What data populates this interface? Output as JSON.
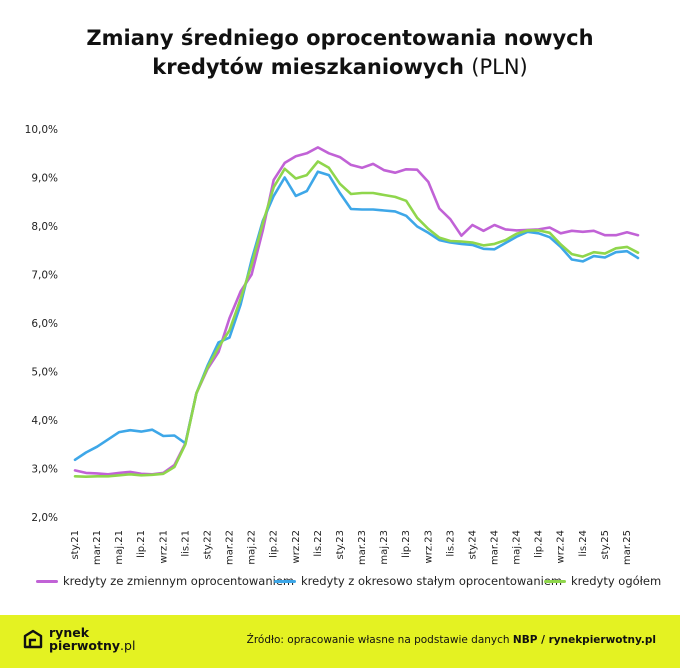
{
  "title": {
    "line1": "Zmiany średniego oprocentowania nowych",
    "line2": "kredytów mieszkaniowych",
    "unit": "(PLN)"
  },
  "colors": {
    "variable": "#c162d6",
    "fixed": "#3ea7e8",
    "total": "#8fd64c",
    "footer_bg": "#e4f222"
  },
  "legend": {
    "variable": "kredyty ze zmiennym oprocentowaniem",
    "fixed": "kredyty z okresowo stałym oprocentowaniem",
    "total": "kredyty ogółem"
  },
  "footer": {
    "logo_line1": "rynek",
    "logo_line2": "pierwotny",
    "logo_suffix": ".pl",
    "source_prefix": "Źródło: opracowanie własne na podstawie danych",
    "source_nbp": "NBP",
    "source_sep": " / ",
    "source_site": "rynekpierwotny.pl"
  },
  "chart_data": {
    "type": "line",
    "ylim": [
      2.0,
      10.0
    ],
    "y_ticks": [
      "2,0%",
      "3,0%",
      "4,0%",
      "5,0%",
      "6,0%",
      "7,0%",
      "8,0%",
      "9,0%",
      "10,0%"
    ],
    "x_tick_labels": [
      "sty.21",
      "mar.21",
      "maj.21",
      "lip.21",
      "wrz.21",
      "lis.21",
      "sty.22",
      "mar.22",
      "maj.22",
      "lip.22",
      "wrz.22",
      "lis.22",
      "sty.23",
      "mar.23",
      "maj.23",
      "lip.23",
      "wrz.23",
      "lis.23",
      "sty.24",
      "mar.24",
      "maj.24",
      "lip.24",
      "wrz.24",
      "lis.24",
      "sty.25",
      "mar.25"
    ],
    "x": [
      "2021-01",
      "2021-02",
      "2021-03",
      "2021-04",
      "2021-05",
      "2021-06",
      "2021-07",
      "2021-08",
      "2021-09",
      "2021-10",
      "2021-11",
      "2021-12",
      "2022-01",
      "2022-02",
      "2022-03",
      "2022-04",
      "2022-05",
      "2022-06",
      "2022-07",
      "2022-08",
      "2022-09",
      "2022-10",
      "2022-11",
      "2022-12",
      "2023-01",
      "2023-02",
      "2023-03",
      "2023-04",
      "2023-05",
      "2023-06",
      "2023-07",
      "2023-08",
      "2023-09",
      "2023-10",
      "2023-11",
      "2023-12",
      "2024-01",
      "2024-02",
      "2024-03",
      "2024-04",
      "2024-05",
      "2024-06",
      "2024-07",
      "2024-08",
      "2024-09",
      "2024-10",
      "2024-11",
      "2024-12",
      "2025-01",
      "2025-02",
      "2025-03",
      "2025-04"
    ],
    "series": [
      {
        "name": "kredyty ze zmiennym oprocentowaniem",
        "key": "variable",
        "values": [
          2.96,
          2.91,
          2.9,
          2.88,
          2.91,
          2.93,
          2.89,
          2.88,
          2.91,
          3.07,
          3.52,
          4.55,
          5.05,
          5.4,
          6.1,
          6.65,
          7.0,
          7.9,
          8.95,
          9.3,
          9.44,
          9.5,
          9.62,
          9.5,
          9.42,
          9.26,
          9.2,
          9.28,
          9.15,
          9.1,
          9.17,
          9.16,
          8.91,
          8.36,
          8.14,
          7.8,
          8.02,
          7.9,
          8.02,
          7.93,
          7.91,
          7.92,
          7.93,
          7.97,
          7.85,
          7.9,
          7.88,
          7.9,
          7.81,
          7.81,
          7.87,
          7.81
        ]
      },
      {
        "name": "kredyty z okresowo stałym oprocentowaniem",
        "key": "fixed",
        "values": [
          3.18,
          3.33,
          3.45,
          3.6,
          3.75,
          3.79,
          3.76,
          3.8,
          3.67,
          3.68,
          3.52,
          4.55,
          5.12,
          5.6,
          5.7,
          6.38,
          7.3,
          8.1,
          8.62,
          9.0,
          8.62,
          8.72,
          9.12,
          9.05,
          8.68,
          8.35,
          8.34,
          8.34,
          8.32,
          8.3,
          8.21,
          7.99,
          7.86,
          7.71,
          7.66,
          7.63,
          7.61,
          7.53,
          7.52,
          7.65,
          7.78,
          7.88,
          7.85,
          7.77,
          7.57,
          7.31,
          7.27,
          7.38,
          7.35,
          7.46,
          7.48,
          7.34
        ]
      },
      {
        "name": "kredyty ogółem",
        "key": "total",
        "values": [
          2.84,
          2.83,
          2.84,
          2.84,
          2.86,
          2.88,
          2.86,
          2.87,
          2.89,
          3.03,
          3.5,
          4.55,
          5.08,
          5.5,
          5.85,
          6.5,
          7.2,
          8.05,
          8.8,
          9.18,
          8.98,
          9.05,
          9.33,
          9.2,
          8.87,
          8.66,
          8.68,
          8.68,
          8.64,
          8.6,
          8.52,
          8.17,
          7.94,
          7.76,
          7.69,
          7.68,
          7.66,
          7.6,
          7.63,
          7.71,
          7.84,
          7.91,
          7.91,
          7.86,
          7.62,
          7.42,
          7.37,
          7.46,
          7.43,
          7.54,
          7.57,
          7.45
        ]
      }
    ]
  }
}
